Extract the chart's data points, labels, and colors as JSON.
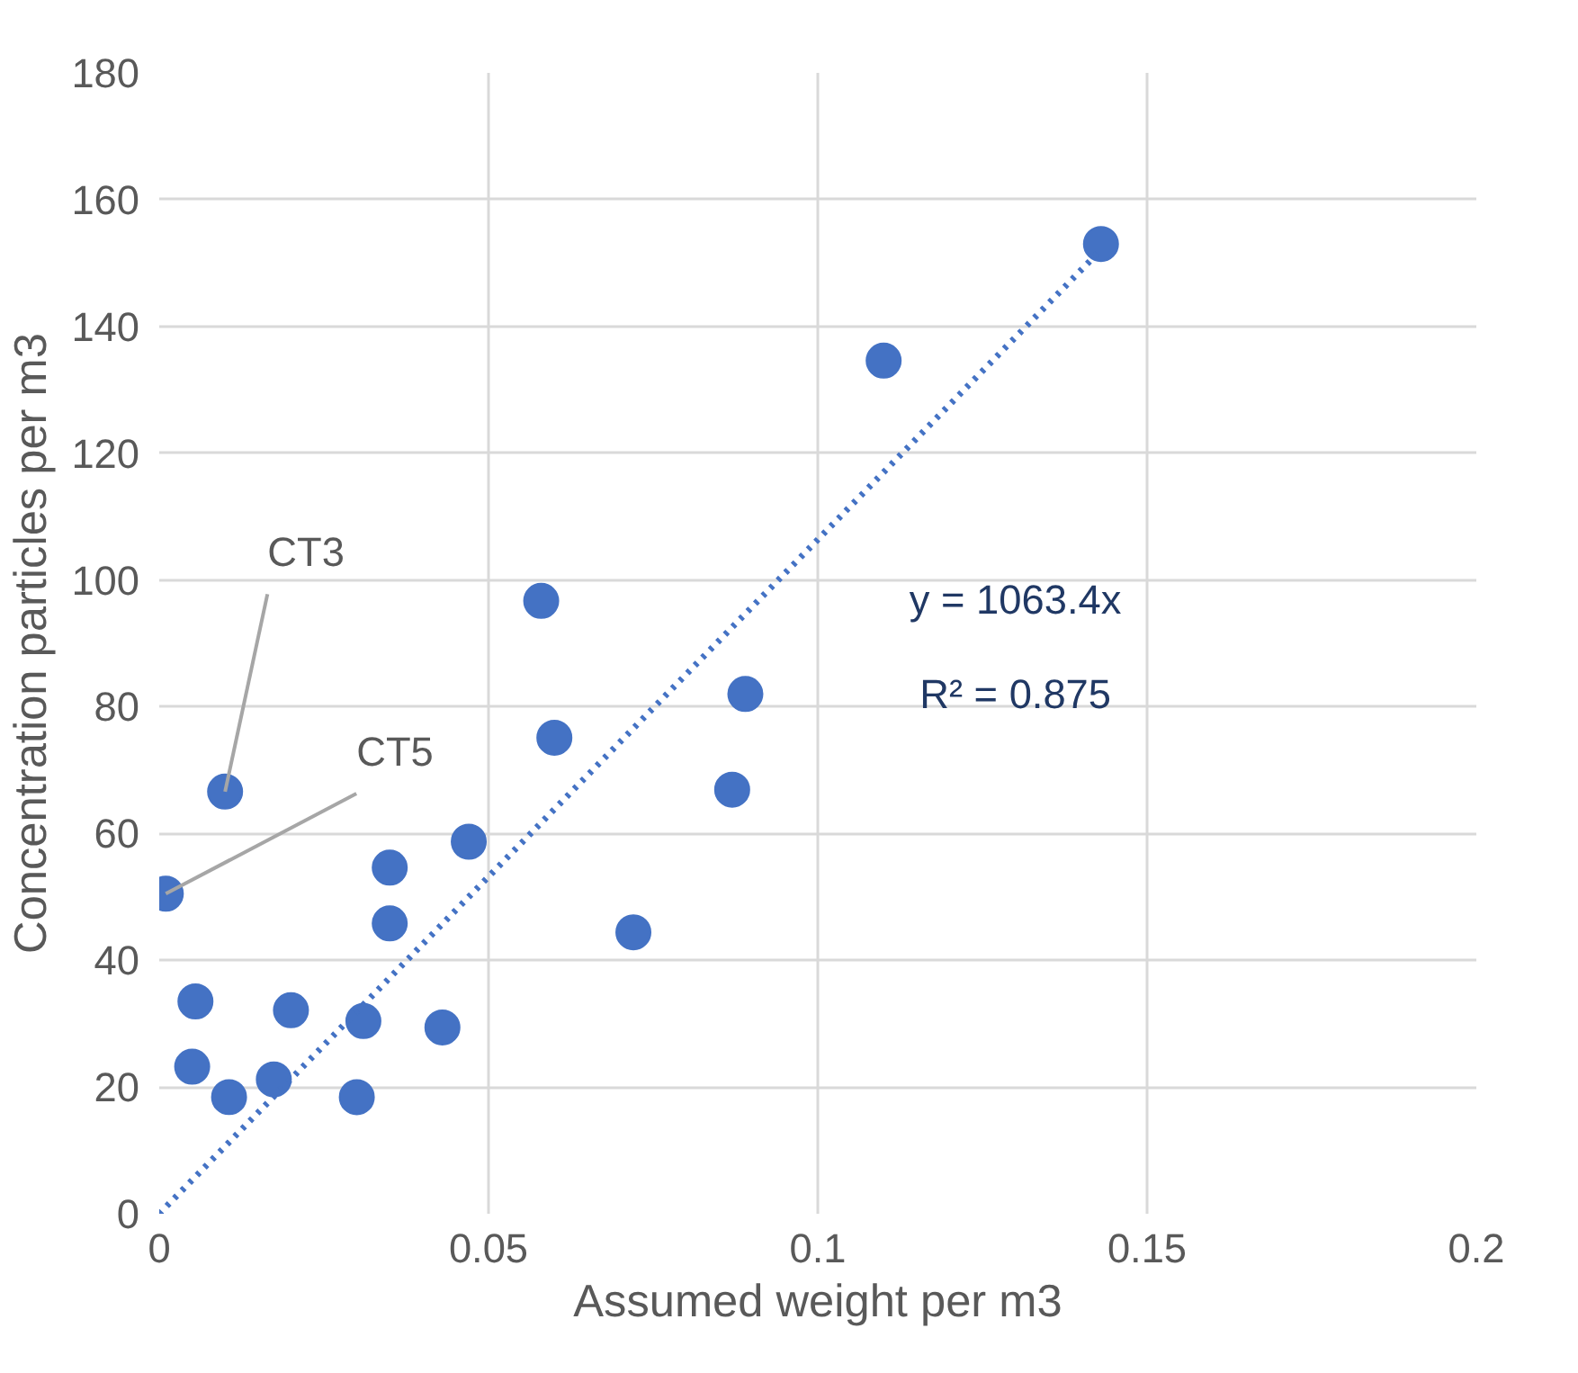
{
  "chart_data": {
    "type": "scatter",
    "xlabel": "Assumed weight per m3",
    "ylabel": "Concentration particles per m3",
    "xlim": [
      0,
      0.2
    ],
    "xticks": [
      0,
      0.05,
      0.1,
      0.15,
      0.2
    ],
    "ylim": [
      0,
      180
    ],
    "yticks": [
      0,
      20,
      40,
      60,
      80,
      100,
      120,
      140,
      160,
      180
    ],
    "grid": true,
    "marker": "circle",
    "series": [
      {
        "color": "#4472c4",
        "x": [
          0.001,
          0.01,
          0.0055,
          0.005,
          0.0106,
          0.0174,
          0.02,
          0.03,
          0.031,
          0.043,
          0.035,
          0.035,
          0.047,
          0.058,
          0.06,
          0.072,
          0.087,
          0.089,
          0.11,
          0.143
        ],
        "values": [
          50.5,
          66.6,
          33.5,
          23.2,
          18.4,
          21.2,
          32.1,
          18.4,
          30.4,
          29.4,
          45.8,
          54.6,
          58.7,
          96.7,
          75.1,
          44.4,
          66.9,
          82.0,
          134.6,
          153
        ]
      },
      {
        "type": "line",
        "color": "#4472c4",
        "line_style": "dotted",
        "marker": "none",
        "x": [
          0,
          0.143
        ],
        "values": [
          0,
          152.1
        ]
      }
    ],
    "annotations": [
      {
        "text": "CT3",
        "x": 0.01,
        "y": 66.6
      },
      {
        "text": "CT5",
        "x": 0.001,
        "y": 50.5
      },
      "y = 1063.4x",
      "R² = 0.875"
    ]
  }
}
